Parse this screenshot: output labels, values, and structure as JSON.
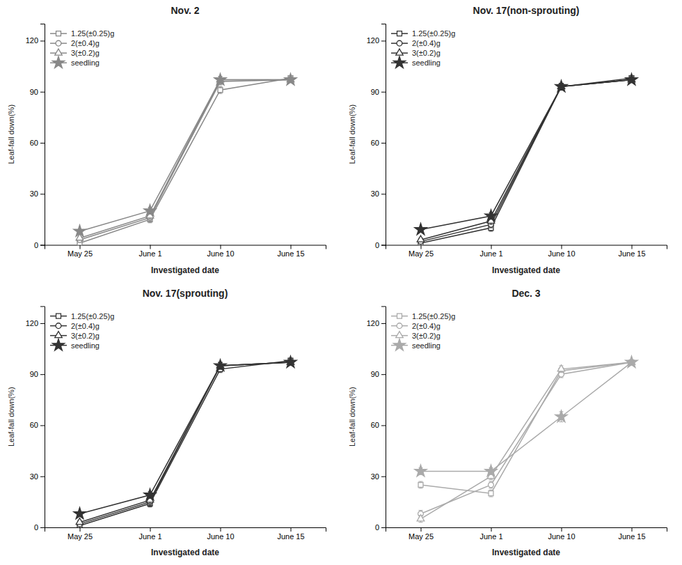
{
  "chart_data": [
    {
      "type": "line",
      "title": "Nov. 2",
      "xlabel": "Investigated date",
      "ylabel": "Leaf-fall down(%)",
      "categories": [
        "May 25",
        "June 1",
        "June 10",
        "June 15"
      ],
      "ylim": [
        0,
        130
      ],
      "yticks": [
        0,
        30,
        60,
        90,
        120
      ],
      "legend": "upper left",
      "series": [
        {
          "name": "1.25(±0.25)g",
          "color": "#888888",
          "marker": "square",
          "values": [
            1,
            15,
            91,
            98
          ],
          "yerr": [
            1,
            2,
            2,
            1.5
          ]
        },
        {
          "name": "2(±0.4)g",
          "color": "#888888",
          "marker": "circle",
          "values": [
            3,
            16,
            96,
            97
          ],
          "yerr": [
            1,
            2,
            2,
            1.5
          ]
        },
        {
          "name": "3(±0.2)g",
          "color": "#888888",
          "marker": "triangle",
          "values": [
            4,
            17,
            97,
            97
          ],
          "yerr": [
            1,
            2,
            2,
            1.5
          ]
        },
        {
          "name": "seedling",
          "color": "#888888",
          "marker": "star",
          "values": [
            8,
            20,
            97,
            97
          ],
          "yerr": [
            1,
            2,
            2,
            1.5
          ]
        }
      ]
    },
    {
      "type": "line",
      "title": "Nov. 17(non-sprouting)",
      "xlabel": "Investigated date",
      "ylabel": "Leaf-fall down(%)",
      "categories": [
        "May 25",
        "June 1",
        "June 10",
        "June 15"
      ],
      "ylim": [
        0,
        130
      ],
      "yticks": [
        0,
        30,
        60,
        90,
        120
      ],
      "legend": "upper left",
      "series": [
        {
          "name": "1.25(±0.25)g",
          "color": "#333333",
          "marker": "square",
          "values": [
            1,
            10,
            93,
            98
          ],
          "yerr": [
            1,
            2,
            2,
            1.5
          ]
        },
        {
          "name": "2(±0.4)g",
          "color": "#333333",
          "marker": "circle",
          "values": [
            2,
            12,
            93,
            97
          ],
          "yerr": [
            1,
            2,
            2,
            1.5
          ]
        },
        {
          "name": "3(±0.2)g",
          "color": "#333333",
          "marker": "triangle",
          "values": [
            3,
            14,
            93,
            97
          ],
          "yerr": [
            1,
            2,
            2,
            1.5
          ]
        },
        {
          "name": "seedling",
          "color": "#333333",
          "marker": "star",
          "values": [
            9,
            17,
            93,
            97
          ],
          "yerr": [
            1,
            2,
            2,
            1.5
          ]
        }
      ]
    },
    {
      "type": "line",
      "title": "Nov. 17(sprouting)",
      "xlabel": "Investigated date",
      "ylabel": "Leaf-fall down(%)",
      "categories": [
        "May 25",
        "June 1",
        "June 10",
        "June 15"
      ],
      "ylim": [
        0,
        130
      ],
      "yticks": [
        0,
        30,
        60,
        90,
        120
      ],
      "legend": "upper left",
      "series": [
        {
          "name": "1.25(±0.25)g",
          "color": "#333333",
          "marker": "square",
          "values": [
            1,
            14,
            93,
            98
          ],
          "yerr": [
            1,
            2,
            2,
            1.5
          ]
        },
        {
          "name": "2(±0.4)g",
          "color": "#333333",
          "marker": "circle",
          "values": [
            2,
            15,
            95,
            97
          ],
          "yerr": [
            1,
            2,
            2,
            1.5
          ]
        },
        {
          "name": "3(±0.2)g",
          "color": "#333333",
          "marker": "triangle",
          "values": [
            3,
            16,
            95,
            97
          ],
          "yerr": [
            1,
            2,
            2,
            1.5
          ]
        },
        {
          "name": "seedling",
          "color": "#333333",
          "marker": "star",
          "values": [
            8,
            19,
            95,
            97
          ],
          "yerr": [
            1,
            2,
            2,
            1.5
          ]
        }
      ]
    },
    {
      "type": "line",
      "title": "Dec. 3",
      "xlabel": "Investigated date",
      "ylabel": "Leaf-fall down(%)",
      "categories": [
        "May 25",
        "June 1",
        "June 10",
        "June 15"
      ],
      "ylim": [
        0,
        130
      ],
      "yticks": [
        0,
        30,
        60,
        90,
        120
      ],
      "legend": "upper left",
      "series": [
        {
          "name": "1.25(±0.25)g",
          "color": "#aaaaaa",
          "marker": "square",
          "values": [
            25,
            20,
            92,
            97
          ],
          "yerr": [
            2,
            2,
            2,
            1.5
          ]
        },
        {
          "name": "2(±0.4)g",
          "color": "#aaaaaa",
          "marker": "circle",
          "values": [
            8,
            25,
            90,
            97
          ],
          "yerr": [
            2,
            2,
            2,
            1.5
          ]
        },
        {
          "name": "3(±0.2)g",
          "color": "#aaaaaa",
          "marker": "triangle",
          "values": [
            5,
            30,
            93,
            97
          ],
          "yerr": [
            2,
            2,
            2,
            1.5
          ]
        },
        {
          "name": "seedling",
          "color": "#aaaaaa",
          "marker": "star",
          "values": [
            33,
            33,
            65,
            97
          ],
          "yerr": [
            2,
            2,
            3,
            1.5
          ]
        }
      ]
    }
  ]
}
